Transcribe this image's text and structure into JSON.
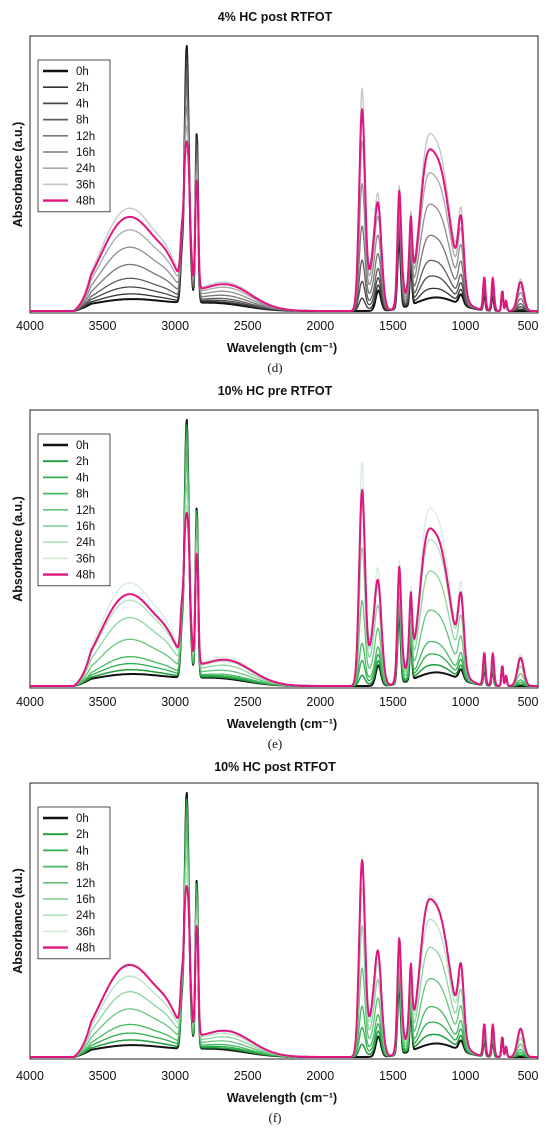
{
  "chart_data": [
    {
      "type": "line",
      "title": "4% HC post RTFOT",
      "caption": "(d)",
      "xlabel": "Wavelength (cm⁻¹)",
      "ylabel": "Absorbance (a.u.)",
      "xlim": [
        4000,
        500
      ],
      "x_reversed": true,
      "x_ticks": [
        "4000",
        "3500",
        "3000",
        "2500",
        "2000",
        "1500",
        "1000",
        "500"
      ],
      "grid": false,
      "legend_position": "top-left",
      "series": [
        {
          "name": "0h",
          "color": "#111111",
          "width": 2.0,
          "scale": 0.0
        },
        {
          "name": "2h",
          "color": "#333333",
          "width": 1.3,
          "scale": 0.06
        },
        {
          "name": "4h",
          "color": "#4a4a4a",
          "width": 1.3,
          "scale": 0.14
        },
        {
          "name": "8h",
          "color": "#5e5e5e",
          "width": 1.3,
          "scale": 0.24
        },
        {
          "name": "12h",
          "color": "#777777",
          "width": 1.3,
          "scale": 0.4
        },
        {
          "name": "16h",
          "color": "#909090",
          "width": 1.3,
          "scale": 0.6
        },
        {
          "name": "24h",
          "color": "#a8a8a8",
          "width": 1.3,
          "scale": 0.8
        },
        {
          "name": "36h",
          "color": "#c4c4c4",
          "width": 1.3,
          "scale": 1.05
        },
        {
          "name": "48h",
          "color": "#e0157f",
          "width": 2.0,
          "scale": 0.95
        }
      ]
    },
    {
      "type": "line",
      "title": "10% HC pre RTFOT",
      "caption": "(e)",
      "xlabel": "Wavelength (cm⁻¹)",
      "ylabel": "Absorbance (a.u.)",
      "xlim": [
        4000,
        500
      ],
      "x_reversed": true,
      "x_ticks": [
        "4000",
        "3500",
        "3000",
        "2500",
        "2000",
        "1500",
        "1000",
        "500"
      ],
      "grid": false,
      "legend_position": "top-left",
      "series": [
        {
          "name": "0h",
          "color": "#111111",
          "width": 2.0,
          "scale": 0.0
        },
        {
          "name": "2h",
          "color": "#1e9e3a",
          "width": 1.5,
          "scale": 0.05
        },
        {
          "name": "4h",
          "color": "#2fae4c",
          "width": 1.3,
          "scale": 0.12
        },
        {
          "name": "8h",
          "color": "#45ba60",
          "width": 1.3,
          "scale": 0.2
        },
        {
          "name": "12h",
          "color": "#66c47c",
          "width": 1.3,
          "scale": 0.4
        },
        {
          "name": "16h",
          "color": "#8dd49e",
          "width": 1.3,
          "scale": 0.65
        },
        {
          "name": "24h",
          "color": "#b2e2bd",
          "width": 1.3,
          "scale": 0.85
        },
        {
          "name": "36h",
          "color": "#d4eed9",
          "width": 1.3,
          "scale": 1.05
        },
        {
          "name": "48h",
          "color": "#e0157f",
          "width": 2.0,
          "scale": 0.92
        }
      ]
    },
    {
      "type": "line",
      "title": "10% HC post RTFOT",
      "caption": "(f)",
      "xlabel": "Wavelength (cm⁻¹)",
      "ylabel": "Absorbance (a.u.)",
      "xlim": [
        4000,
        500
      ],
      "x_reversed": true,
      "x_ticks": [
        "4000",
        "3500",
        "3000",
        "2500",
        "2000",
        "1500",
        "1000",
        "500"
      ],
      "grid": false,
      "legend_position": "top-left",
      "series": [
        {
          "name": "0h",
          "color": "#111111",
          "width": 2.0,
          "scale": 0.0
        },
        {
          "name": "2h",
          "color": "#1e9e3a",
          "width": 1.5,
          "scale": 0.06
        },
        {
          "name": "4h",
          "color": "#2fae4c",
          "width": 1.3,
          "scale": 0.14
        },
        {
          "name": "8h",
          "color": "#45ba60",
          "width": 1.3,
          "scale": 0.24
        },
        {
          "name": "12h",
          "color": "#66c47c",
          "width": 1.3,
          "scale": 0.42
        },
        {
          "name": "16h",
          "color": "#8dd49e",
          "width": 1.3,
          "scale": 0.62
        },
        {
          "name": "24h",
          "color": "#b2e2bd",
          "width": 1.3,
          "scale": 0.8
        },
        {
          "name": "36h",
          "color": "#d4eed9",
          "width": 1.3,
          "scale": 0.95
        },
        {
          "name": "48h",
          "color": "#e0157f",
          "width": 2.0,
          "scale": 0.93
        }
      ]
    }
  ]
}
